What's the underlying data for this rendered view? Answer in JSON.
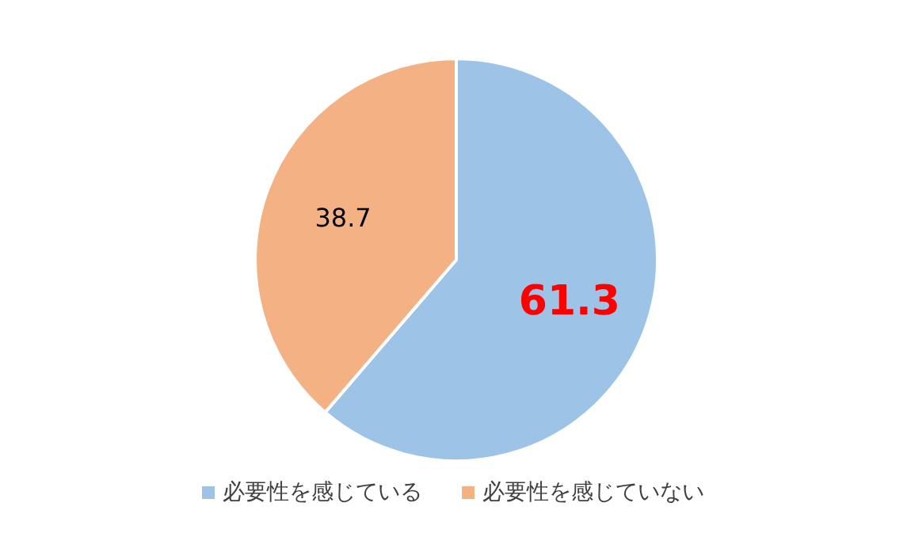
{
  "chart_data": {
    "type": "pie",
    "categories": [
      "必要性を感じている",
      "必要性を感じていない"
    ],
    "values": [
      61.3,
      38.7
    ],
    "colors": [
      "#9dc3e6",
      "#f4b183"
    ],
    "data_labels": true,
    "legend": "bottom"
  }
}
